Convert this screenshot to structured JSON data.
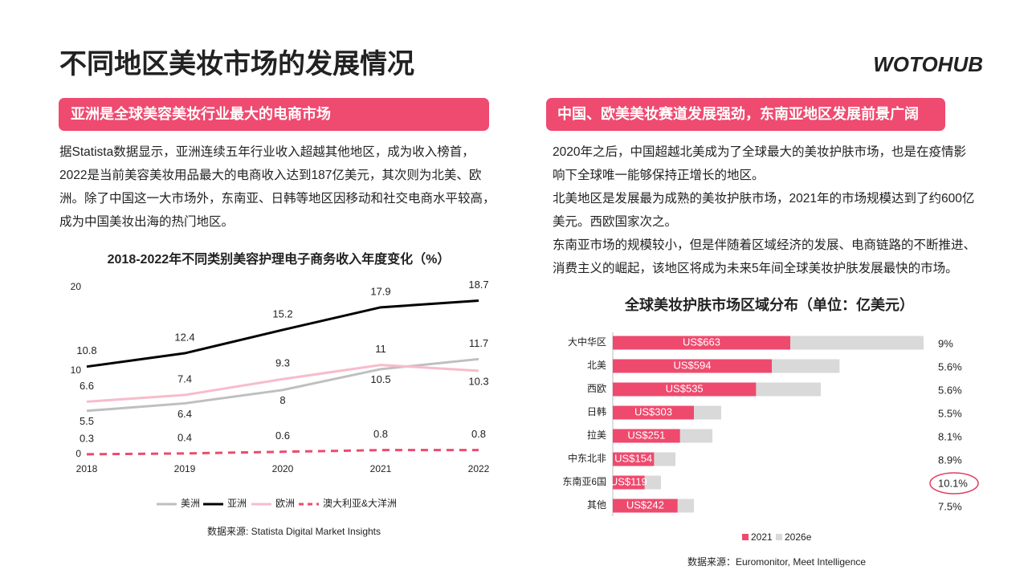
{
  "header": {
    "title": "不同地区美妆市场的发展情况",
    "logo": "WOTOHUB"
  },
  "left": {
    "heading": "亚洲是全球美容美妆行业最大的电商市场",
    "paragraph": [
      "据Statista数据显示，亚洲连续五年行业收入超越其他地区，成为收入榜首，",
      "2022是当前美容美妆用品最大的电商收入达到187亿美元，其次则为北美、欧",
      "洲。除了中国这一大市场外，东南亚、日韩等地区因移动和社交电商水平较高，",
      "成为中国美妆出海的热门地区。"
    ]
  },
  "right": {
    "heading": "中国、欧美美妆赛道发展强劲，东南亚地区发展前景广阔",
    "paragraph": [
      "2020年之后，中国超越北美成为了全球最大的美妆护肤市场，也是在疫情影",
      "响下全球唯一能够保持正增长的地区。",
      "北美地区是发展最为成熟的美妆护肤市场，2021年的市场规模达到了约600亿",
      "美元。西欧国家次之。",
      "东南亚市场的规模较小，但是伴随着区域经济的发展、电商链路的不断推进、",
      "消费主义的崛起，该地区将成为未来5年间全球美妆护肤发展最快的市场。"
    ]
  },
  "chart_data": [
    {
      "type": "line",
      "title": "2018-2022年不同类别美容护理电子商务收入年度变化（%）",
      "categories": [
        "2018",
        "2019",
        "2020",
        "2021",
        "2022"
      ],
      "ylim": [
        0,
        20
      ],
      "yticks": [
        0,
        10,
        20
      ],
      "grid": false,
      "series": [
        {
          "name": "美洲",
          "color": "#bfbfbf",
          "values": [
            5.5,
            6.4,
            8,
            10.5,
            11.7
          ]
        },
        {
          "name": "亚洲",
          "color": "#000000",
          "values": [
            10.8,
            12.4,
            15.2,
            17.9,
            18.7
          ]
        },
        {
          "name": "欧洲",
          "color": "#f7bccb",
          "values": [
            6.6,
            7.4,
            9.3,
            11,
            10.3
          ]
        },
        {
          "name": "澳大利亚&大洋洲",
          "color": "#ee4a6e",
          "dashed": true,
          "values": [
            0.3,
            0.4,
            0.6,
            0.8,
            0.8
          ]
        }
      ],
      "source": "数据来源: Statista Digital Market Insights"
    },
    {
      "type": "hbar",
      "title": "全球美妆护肤市场区域分布（单位：亿美元）",
      "categories": [
        "大中华区",
        "北美",
        "西欧",
        "日韩",
        "拉美",
        "中东北非",
        "东南亚6国",
        "其他"
      ],
      "xlim": [
        0,
        1200
      ],
      "series": [
        {
          "name": "2021",
          "color": "#ee4a6e",
          "values": [
            663,
            594,
            535,
            303,
            251,
            154,
            119,
            242
          ],
          "value_labels": [
            "US$663",
            "US$594",
            "US$535",
            "US$303",
            "US$251",
            "US$154",
            "US$119",
            "US$242"
          ]
        },
        {
          "name": "2026e",
          "color": "#d9d9d9",
          "values": [
            1161,
            847,
            777,
            405,
            372,
            234,
            180,
            303
          ]
        }
      ],
      "growth_labels": [
        "9%",
        "5.6%",
        "5.6%",
        "5.5%",
        "8.1%",
        "8.9%",
        "10.1%",
        "7.5%"
      ],
      "highlight": 6,
      "source": "数据来源：Euromonitor, Meet Intelligence"
    }
  ]
}
